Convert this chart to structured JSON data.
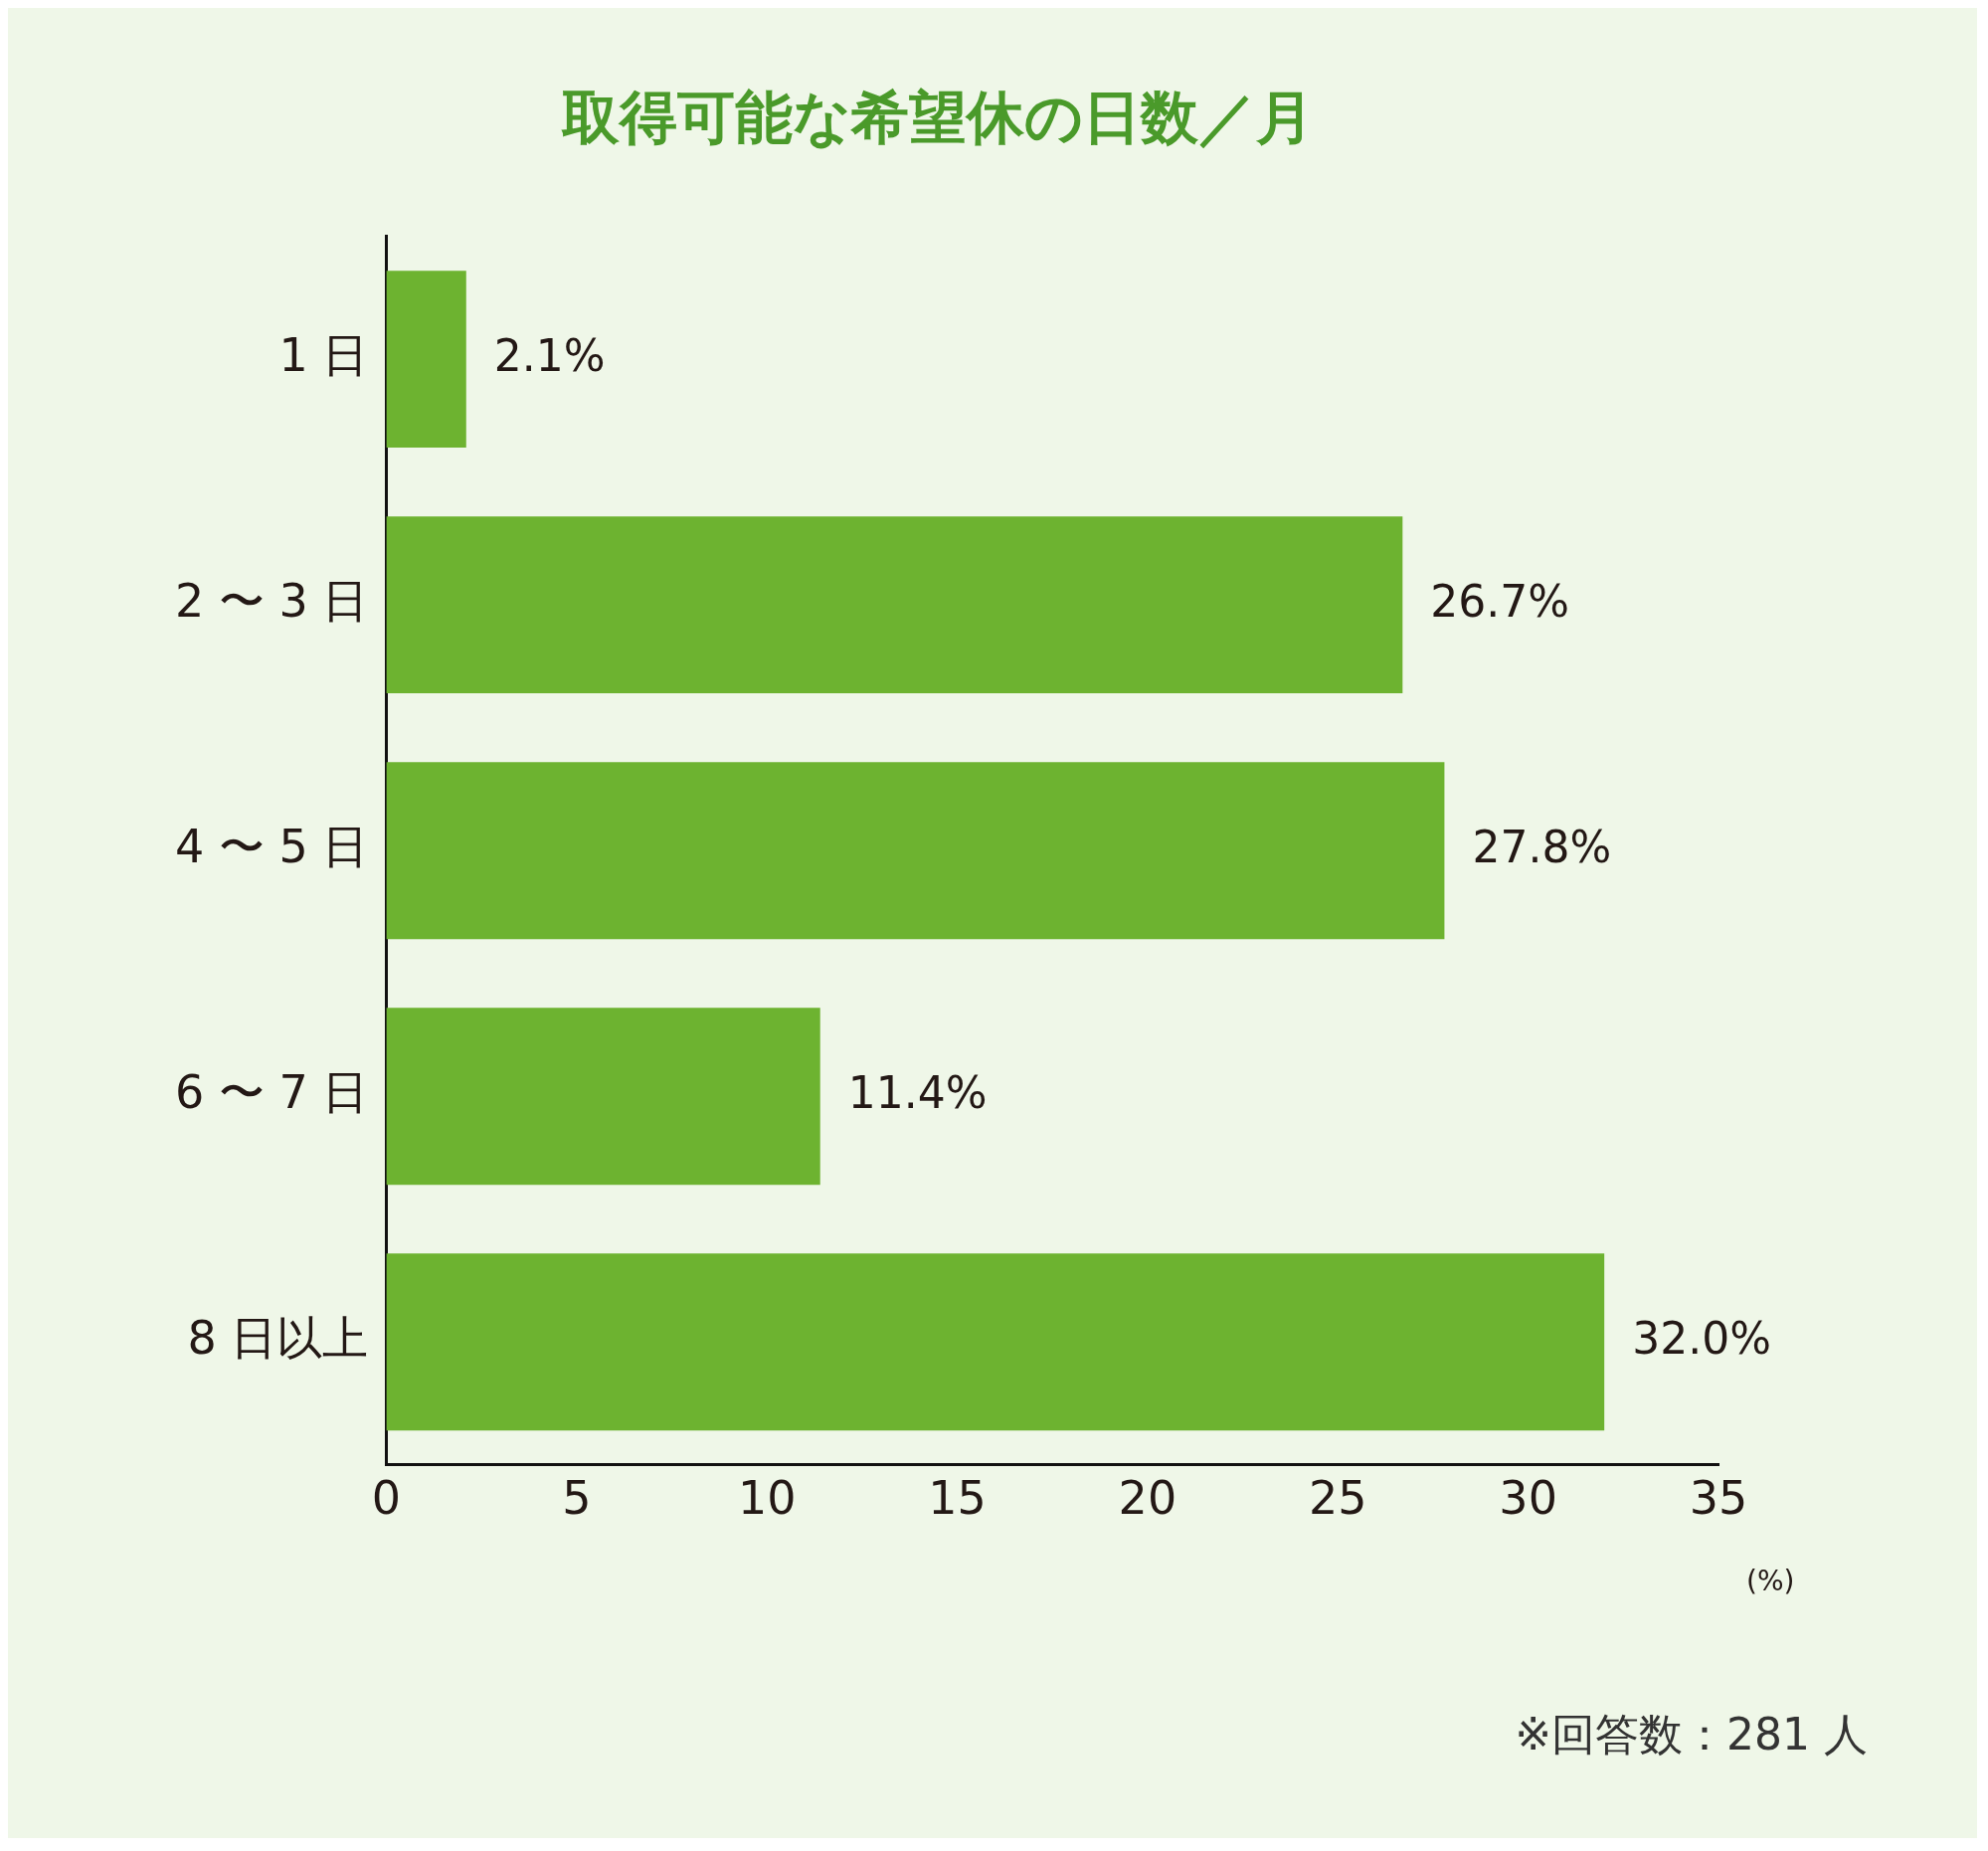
{
  "chart_data": {
    "type": "bar",
    "orientation": "horizontal",
    "title": "取得可能な希望休の日数／月",
    "categories": [
      "1 日",
      "2 〜 3 日",
      "4 〜 5 日",
      "6 〜 7 日",
      "8 日以上"
    ],
    "values": [
      2.1,
      26.7,
      27.8,
      11.4,
      32.0
    ],
    "value_labels": [
      "2.1%",
      "26.7%",
      "27.8%",
      "11.4%",
      "32.0%"
    ],
    "color": "#6db330",
    "xlim": [
      0,
      35
    ],
    "xticks": [
      0,
      5,
      10,
      15,
      20,
      25,
      30,
      35
    ],
    "xlabel": "(%)",
    "grid": false,
    "legend": false,
    "annotations": [
      "※回答数：281 人"
    ]
  }
}
